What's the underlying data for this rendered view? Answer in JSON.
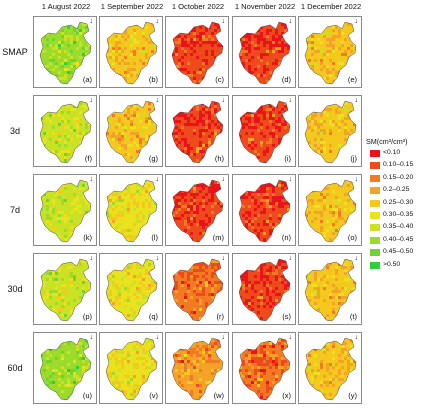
{
  "chart_data": {
    "type": "heatmap",
    "columns": [
      "1 August 2022",
      "1 September 2022",
      "1 October 2022",
      "1 November 2022",
      "1 December 2022"
    ],
    "rows": [
      "SMAP",
      "3d",
      "7d",
      "30d",
      "60d"
    ],
    "panel_labels": [
      [
        "(a)",
        "(b)",
        "(c)",
        "(d)",
        "(e)"
      ],
      [
        "(f)",
        "(g)",
        "(h)",
        "(i)",
        "(j)"
      ],
      [
        "(k)",
        "(l)",
        "(m)",
        "(n)",
        "(o)"
      ],
      [
        "(p)",
        "(q)",
        "(r)",
        "(s)",
        "(t)"
      ],
      [
        "(u)",
        "(v)",
        "(w)",
        "(x)",
        "(y)"
      ]
    ],
    "north_arrow": "↓",
    "legend": {
      "title": "SM(cm³/cm³)",
      "classes": [
        {
          "label": "<0.10",
          "color": "#e8141a"
        },
        {
          "label": "0.10–0.15",
          "color": "#ee4a1c"
        },
        {
          "label": "0.15–0.20",
          "color": "#f17a22"
        },
        {
          "label": "0.2–0.25",
          "color": "#f5a229"
        },
        {
          "label": "0.25–0.30",
          "color": "#f4c81c"
        },
        {
          "label": "0.30–0.35",
          "color": "#eae21e"
        },
        {
          "label": "0.35–0.40",
          "color": "#c9e224"
        },
        {
          "label": "0.40–0.45",
          "color": "#9bdb2c"
        },
        {
          "label": "0.45–0.50",
          "color": "#6fd433"
        },
        {
          "label": ">0.50",
          "color": "#2fd13a"
        }
      ]
    },
    "dominant_class_index": [
      [
        7,
        4,
        1,
        1,
        4
      ],
      [
        6,
        4,
        1,
        1,
        4
      ],
      [
        6,
        5,
        1,
        1,
        4
      ],
      [
        6,
        5,
        2,
        1,
        4
      ],
      [
        7,
        5,
        3,
        2,
        4
      ]
    ]
  }
}
